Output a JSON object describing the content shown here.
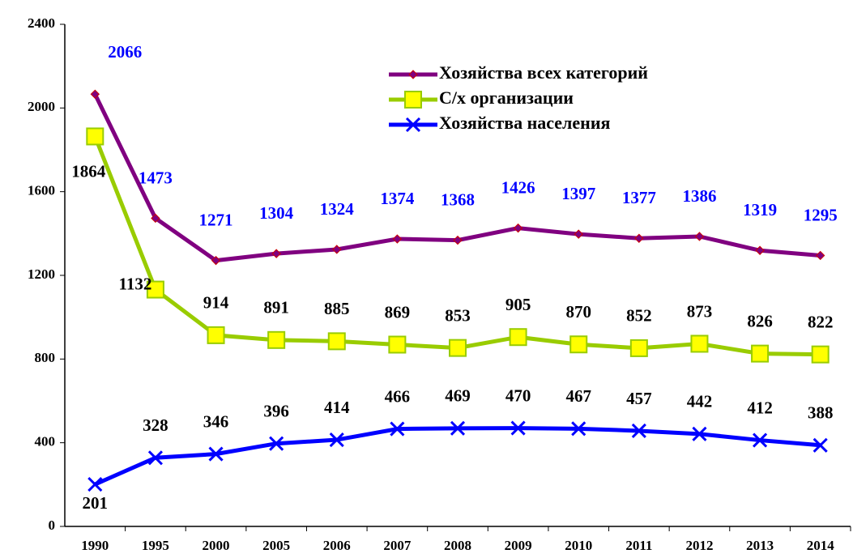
{
  "chart_data": {
    "type": "line",
    "categories": [
      "1990",
      "1995",
      "2000",
      "2005",
      "2006",
      "2007",
      "2008",
      "2009",
      "2010",
      "2011",
      "2012",
      "2013",
      "2014"
    ],
    "series": [
      {
        "name": "Хозяйства всех категорий",
        "color": "#800080",
        "label_color": "#0000ff",
        "marker": "diamond",
        "values": [
          2066,
          1473,
          1271,
          1304,
          1324,
          1374,
          1368,
          1426,
          1397,
          1377,
          1386,
          1319,
          1295
        ]
      },
      {
        "name": "С/х организации",
        "color": "#99cc00",
        "marker_fill": "#ffff00",
        "label_color": "#000000",
        "marker": "square",
        "values": [
          1864,
          1132,
          914,
          891,
          885,
          869,
          853,
          905,
          870,
          852,
          873,
          826,
          822
        ]
      },
      {
        "name": "Хозяйства населения",
        "color": "#0000ff",
        "label_color": "#000000",
        "marker": "x",
        "values": [
          201,
          328,
          346,
          396,
          414,
          466,
          469,
          470,
          467,
          457,
          442,
          412,
          388
        ]
      }
    ],
    "ylim": [
      0,
      2400
    ],
    "yticks": [
      0,
      400,
      800,
      1200,
      1600,
      2000,
      2400
    ],
    "grid": false,
    "legend": "upper right"
  }
}
